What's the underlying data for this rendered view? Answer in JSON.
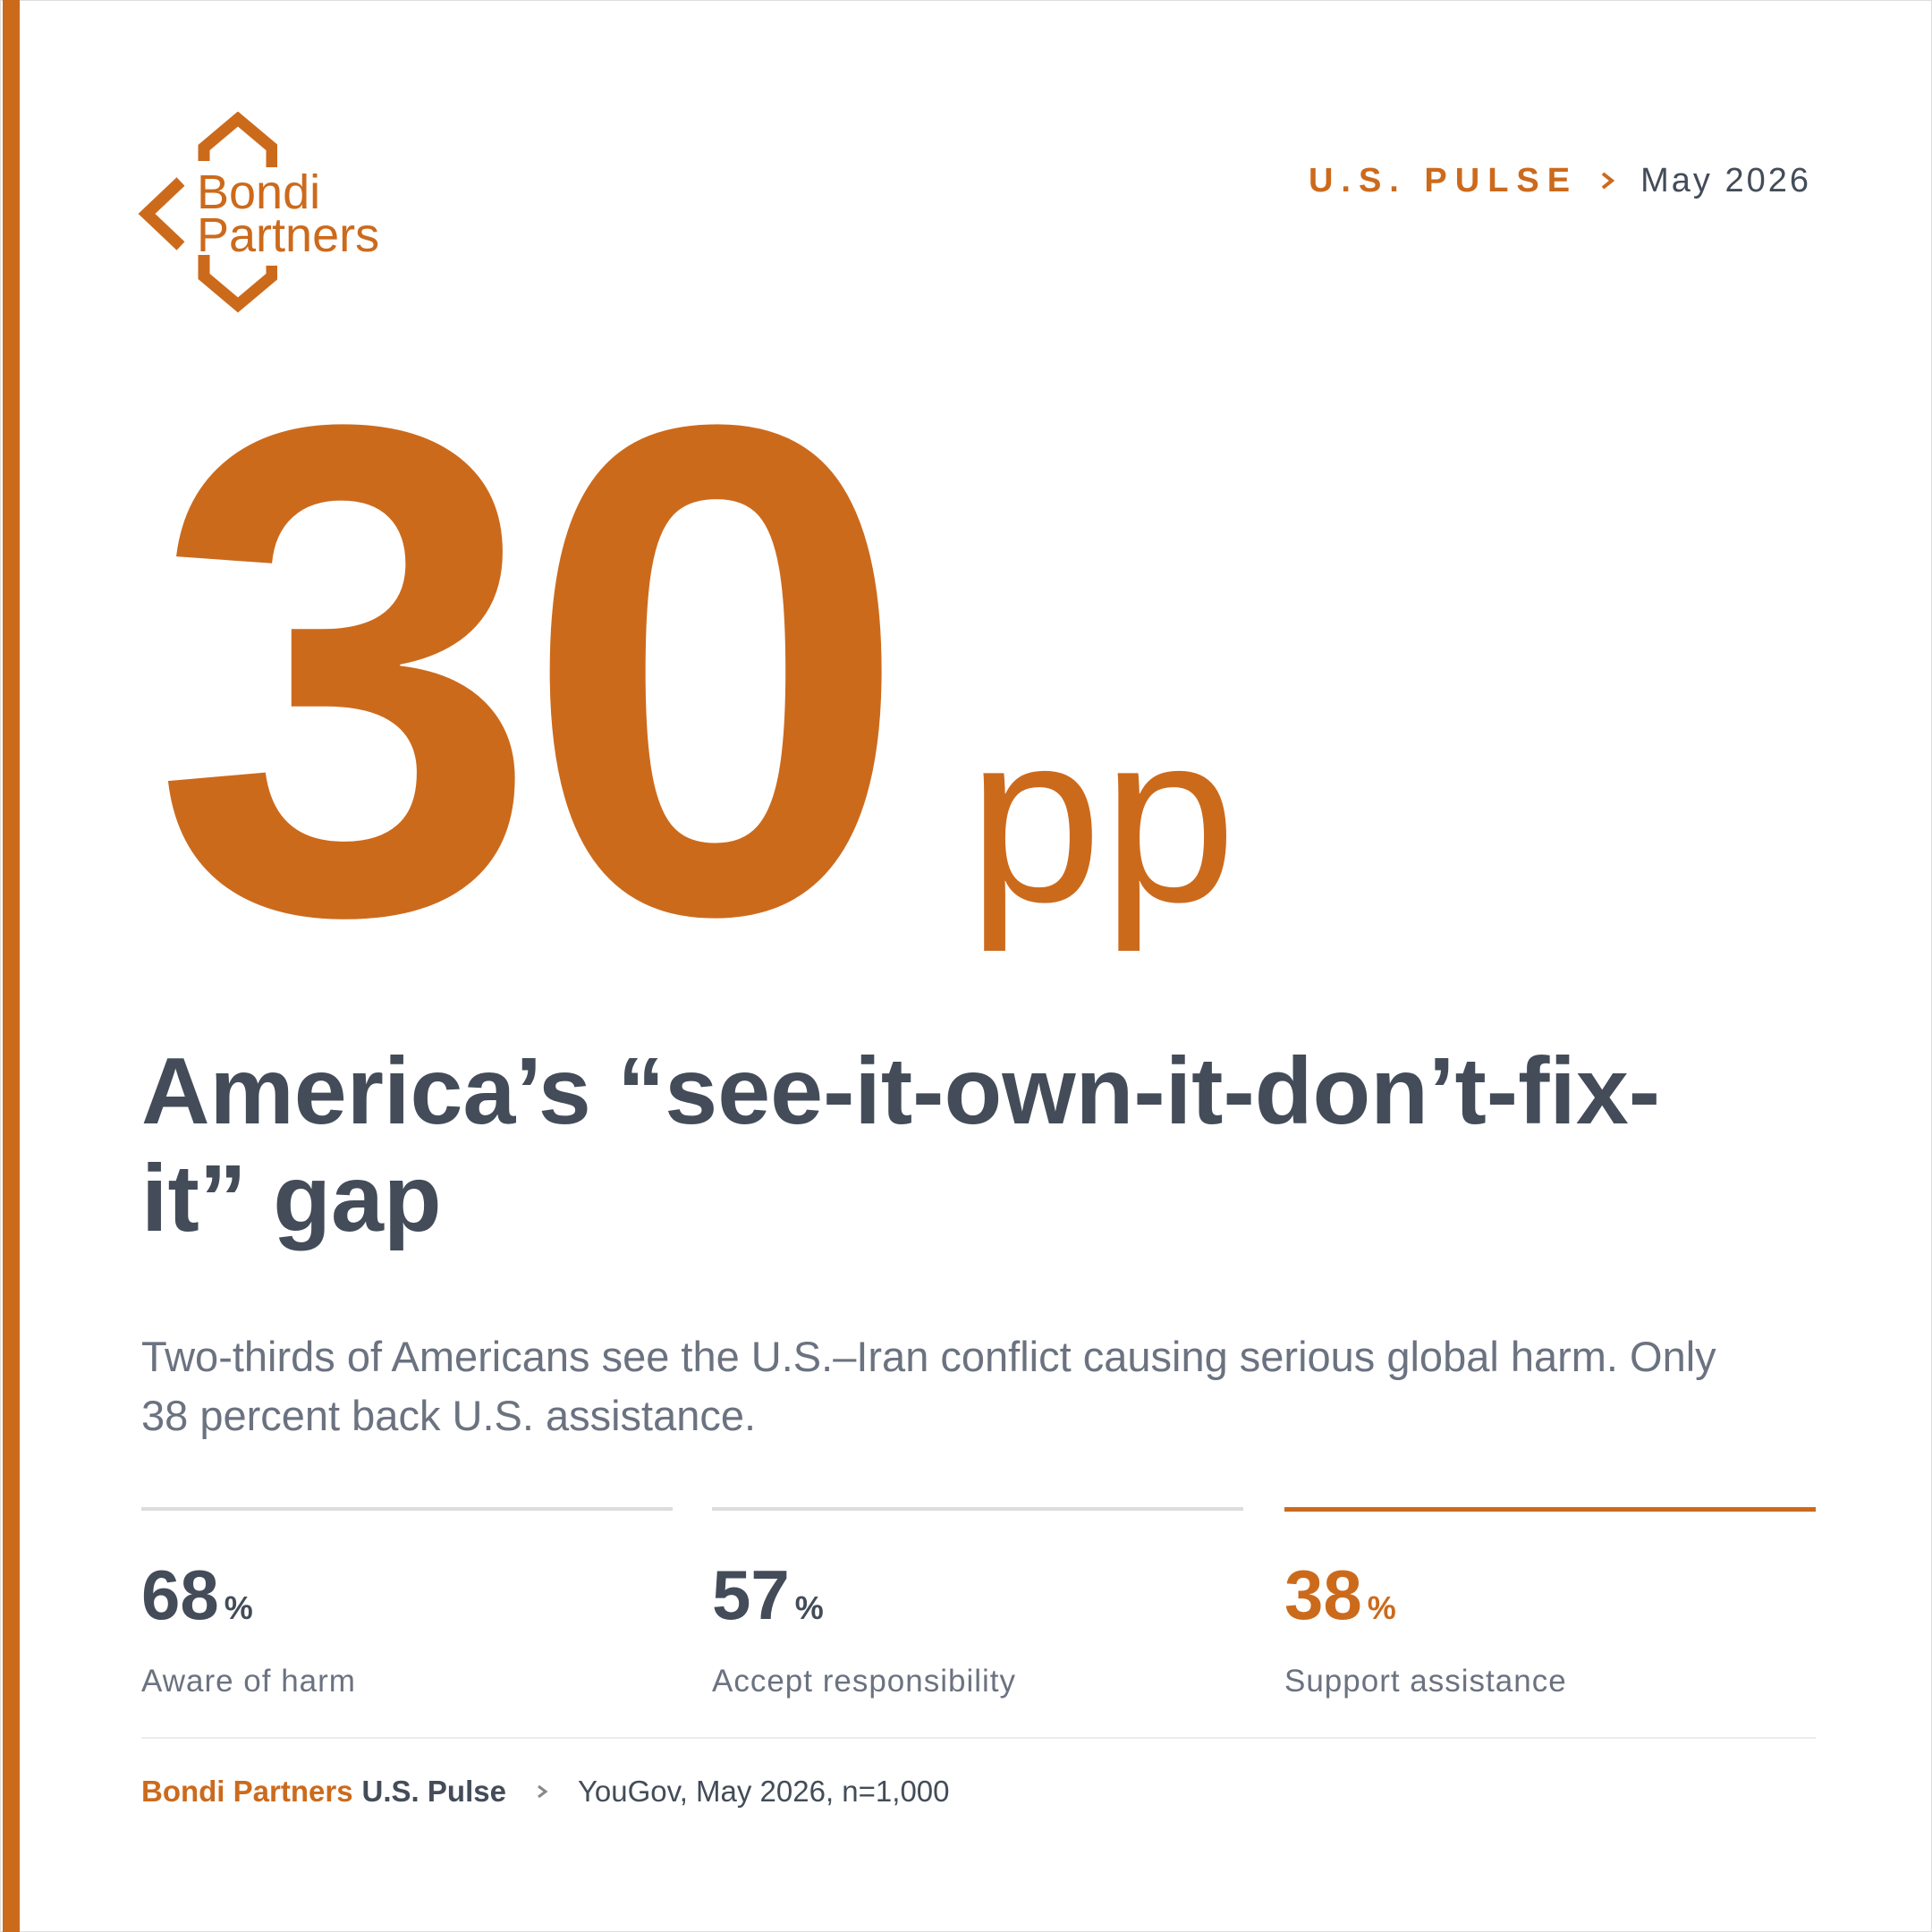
{
  "logo": {
    "line1": "Bondi",
    "line2": "Partners"
  },
  "header": {
    "series": "U.S. PULSE",
    "date": "May 2026"
  },
  "hero": {
    "number": "30",
    "unit": "pp"
  },
  "title": "America’s “see-it-own-it-don’t-fix-it” gap",
  "subtitle": "Two-thirds of Americans see the U.S.–Iran conflict causing serious global harm. Only 38 percent back U.S. assistance.",
  "stats": [
    {
      "value": "68",
      "unit": "%",
      "label": "Aware of harm"
    },
    {
      "value": "57",
      "unit": "%",
      "label": "Accept responsibility"
    },
    {
      "value": "38",
      "unit": "%",
      "label": "Support assistance"
    }
  ],
  "footer": {
    "brand": "Bondi Partners",
    "series": "U.S. Pulse",
    "source": "YouGov, May 2026, n=1,000"
  }
}
